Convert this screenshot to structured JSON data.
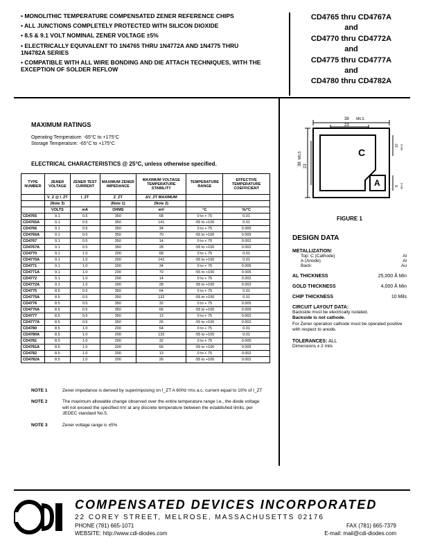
{
  "features": [
    "MONOLITHIC TEMPERATURE COMPENSATED ZENER REFERENCE CHIPS",
    "ALL JUNCTIONS COMPLETELY PROTECTED WITH SILICON DIOXIDE",
    "8.5 & 9.1 VOLT NOMINAL ZENER VOLTAGE ±5%",
    "ELECTRICALLY EQUIVALENT TO 1N4765 THRU 1N4772A AND 1N4775 THRU 1N4782A SERIES",
    "COMPATIBLE WITH ALL WIRE BONDING AND DIE ATTACH TECHNIQUES, WITH THE EXCEPTION OF SOLDER REFLOW"
  ],
  "partRanges": [
    "CD4765 thru CD4767A",
    "and",
    "CD4770 thru CD4772A",
    "and",
    "CD4775 thru CD4777A",
    "and",
    "CD4780 thru CD4782A"
  ],
  "maxRatings": {
    "title": "MAXIMUM RATINGS",
    "operating": "Operating Temperature: -65°C to +175°C",
    "storage": "Storage Temperature: -65°C to +175°C"
  },
  "elecTitle": "ELECTRICAL CHARACTERISTICS @ 25°C, unless otherwise specified.",
  "headers": [
    "TYPE NUMBER",
    "ZENER VOLTAGE",
    "ZENER TEST CURRENT",
    "MAXIMUM ZENER IMPEDANCE",
    "MAXIMUM VOLTAGE TEMPERATURE STABILITY",
    "TEMPERATURE RANGE",
    "EFFECTIVE TEMPERATURE COEFFICIENT"
  ],
  "sub": [
    "",
    "V_Z @ I_ZT",
    "I_ZT",
    "Z_ZT",
    "ΔV_ZT MAXIMUM",
    "",
    ""
  ],
  "noteRow": [
    "",
    "(Note 3)",
    "",
    "(Note 1)",
    "(Note 2)",
    "",
    ""
  ],
  "units": [
    "",
    "VOLTS",
    "mA",
    "OHMS",
    "mV",
    "°C",
    "%/°C"
  ],
  "groups": [
    [
      [
        "CD4765",
        "9.1",
        "0.5",
        "350",
        "68",
        "0 to + 75",
        "0.01"
      ],
      [
        "CD4765A",
        "9.1",
        "0.5",
        "350",
        "141",
        "-55 to +100",
        "0.01"
      ],
      [
        "CD4766",
        "9.1",
        "0.5",
        "350",
        "34",
        "0 to + 75",
        "0.005"
      ],
      [
        "CD4766A",
        "9.1",
        "0.5",
        "350",
        "70",
        "-55 to +100",
        "0.005"
      ]
    ],
    [
      [
        "CD4767",
        "9.1",
        "0.5",
        "350",
        "14",
        "0 to + 75",
        "0.002"
      ],
      [
        "CD4767A",
        "9.1",
        "0.5",
        "350",
        "28",
        "-55 to +100",
        "0.002"
      ],
      [
        "CD4770",
        "9.1",
        "1.0",
        "200",
        "68",
        "0 to + 75",
        "0.01"
      ],
      [
        "CD4770A",
        "9.1",
        "1.0",
        "200",
        "141",
        "-55 to +100",
        "0.01"
      ]
    ],
    [
      [
        "CD4771",
        "9.1",
        "1.0",
        "200",
        "34",
        "0 to + 75",
        "0.005"
      ],
      [
        "CD4771A",
        "9.1",
        "1.0",
        "200",
        "70",
        "-55 to +100",
        "0.005"
      ],
      [
        "CD4772",
        "9.1",
        "1.0",
        "200",
        "14",
        "0 to + 75",
        "0.002"
      ],
      [
        "CD4772A",
        "9.1",
        "1.0",
        "200",
        "28",
        "-55 to +100",
        "0.002"
      ]
    ],
    [
      [
        "CD4775",
        "8.5",
        "0.5",
        "350",
        "64",
        "0 to + 75",
        "0.01"
      ],
      [
        "CD4775A",
        "8.5",
        "0.5",
        "350",
        "132",
        "-55 to +100",
        "0.01"
      ],
      [
        "CD4776",
        "8.5",
        "0.5",
        "350",
        "32",
        "0 to + 75",
        "0.005"
      ],
      [
        "CD4776A",
        "8.5",
        "0.5",
        "350",
        "66",
        "-55 to +100",
        "0.005"
      ]
    ],
    [
      [
        "CD4777",
        "8.5",
        "0.5",
        "350",
        "13",
        "0 to + 75",
        "0.002"
      ],
      [
        "CD4777A",
        "8.5",
        "0.5",
        "350",
        "26",
        "-55 to +100",
        "0.002"
      ],
      [
        "CD4780",
        "8.5",
        "1.0",
        "200",
        "64",
        "0 to + 75",
        "0.01"
      ],
      [
        "CD4780A",
        "8.5",
        "1.0",
        "200",
        "132",
        "-55 to +100",
        "0.01"
      ]
    ],
    [
      [
        "CD4781",
        "8.5",
        "1.0",
        "200",
        "32",
        "0 to + 75",
        "0.005"
      ],
      [
        "CD4781A",
        "8.5",
        "1.0",
        "200",
        "66",
        "-55 to +100",
        "0.005"
      ],
      [
        "CD4782",
        "8.5",
        "1.0",
        "200",
        "13",
        "0 to + 75",
        "0.002"
      ],
      [
        "CD4782A",
        "8.5",
        "1.0",
        "200",
        "26",
        "-55 to +100",
        "0.002"
      ]
    ]
  ],
  "notes": [
    {
      "l": "NOTE 1",
      "t": "Zener impedance is derived by superimposing on I_ZT A 60Hz rms a.c. current equal to 10% of I_ZT"
    },
    {
      "l": "NOTE 2",
      "t": "The maximum allowable change observed over the entire temperature range I.e., the diode voltage will not exceed the specified mV at any discrete temperature between the established limits, per JEDEC standard No.5."
    },
    {
      "l": "NOTE 3",
      "t": "Zener voltage range is ±5%"
    }
  ],
  "figure": {
    "caption": "FIGURE 1",
    "dims": {
      "outer": "38",
      "inner": "23",
      "h1": "38",
      "h2": "23",
      "r1": "10",
      "r2": "8"
    },
    "cLabel": "C",
    "aLabel": "A"
  },
  "design": {
    "title": "DESIGN DATA",
    "metal": {
      "title": "METALLIZATION:",
      "rows": [
        [
          "Top: C (Cathode)",
          "Al"
        ],
        [
          "A (Anode)",
          "Al"
        ],
        [
          "Back:",
          "Au"
        ]
      ]
    },
    "al": {
      "l": "AL THICKNESS",
      "v": "25,000 Å Min"
    },
    "gold": {
      "l": "GOLD THICKNESS",
      "v": "4,000 Å Min"
    },
    "chip": {
      "l": "CHIP THICKNESS",
      "v": "10 Mils"
    },
    "layout": {
      "title": "CIRCUIT LAYOUT DATA:",
      "lines": [
        "Backside must be electrically isolated.",
        "Backside is not cathode.",
        "For Zener operation cathode must be operated positive with respect to anode."
      ]
    },
    "tol": {
      "l": "TOLERANCES:",
      "v": "ALL",
      "sub": "Dimensions ± 2 mils"
    }
  },
  "footer": {
    "company": "COMPENSATED DEVICES INCORPORATED",
    "addr": "22 COREY STREET, MELROSE, MASSACHUSETTS 02176",
    "phone": "PHONE (781) 665-1071",
    "fax": "FAX (781) 665-7379",
    "web": "WEBSITE: http://www.cdi-diodes.com",
    "email": "E-mail: mail@cdi-diodes.com"
  }
}
